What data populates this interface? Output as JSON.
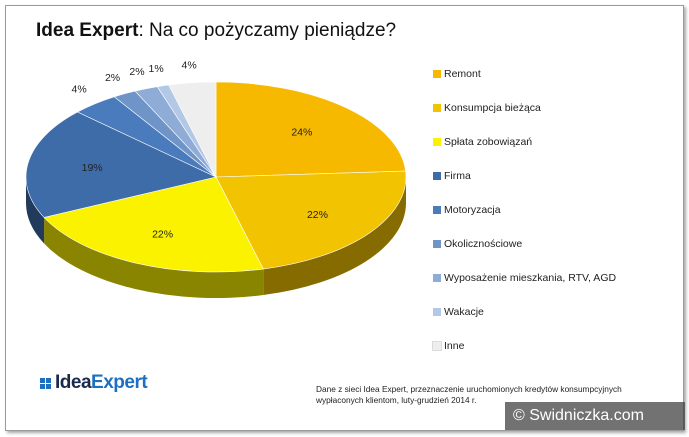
{
  "title": {
    "bold": "Idea Expert",
    "rest": ": Na co pożyczamy pieniądze?"
  },
  "chart_data": {
    "type": "pie",
    "title": "Idea Expert: Na co pożyczamy pieniądze?",
    "categories": [
      "Remont",
      "Konsumpcja bieżąca",
      "Spłata zobowiązań",
      "Firma",
      "Motoryzacja",
      "Okolicznościowe",
      "Wyposażenie mieszkania, RTV, AGD",
      "Wakacje",
      "Inne"
    ],
    "values": [
      24,
      22,
      22,
      19,
      4,
      2,
      2,
      1,
      4
    ],
    "labels": [
      "24%",
      "22%",
      "22%",
      "19%",
      "4%",
      "2%",
      "2%",
      "1%",
      "4%"
    ],
    "colors": [
      "#f7b900",
      "#f2c300",
      "#fbf200",
      "#3e6ca8",
      "#4a7bbd",
      "#6f95c8",
      "#8facd6",
      "#b3c8e6",
      "#eeeeee"
    ],
    "legend_position": "right"
  },
  "logo": {
    "idea": "Idea",
    "expert": "Expert"
  },
  "note": {
    "line1": "Dane z sieci Idea Expert, przeznaczenie uruchomionych kredytów konsumpcyjnych",
    "line2": "wypłaconych klientom, luty-grudzień 2014 r."
  },
  "watermark": {
    "text": "© Swidniczka.com"
  }
}
